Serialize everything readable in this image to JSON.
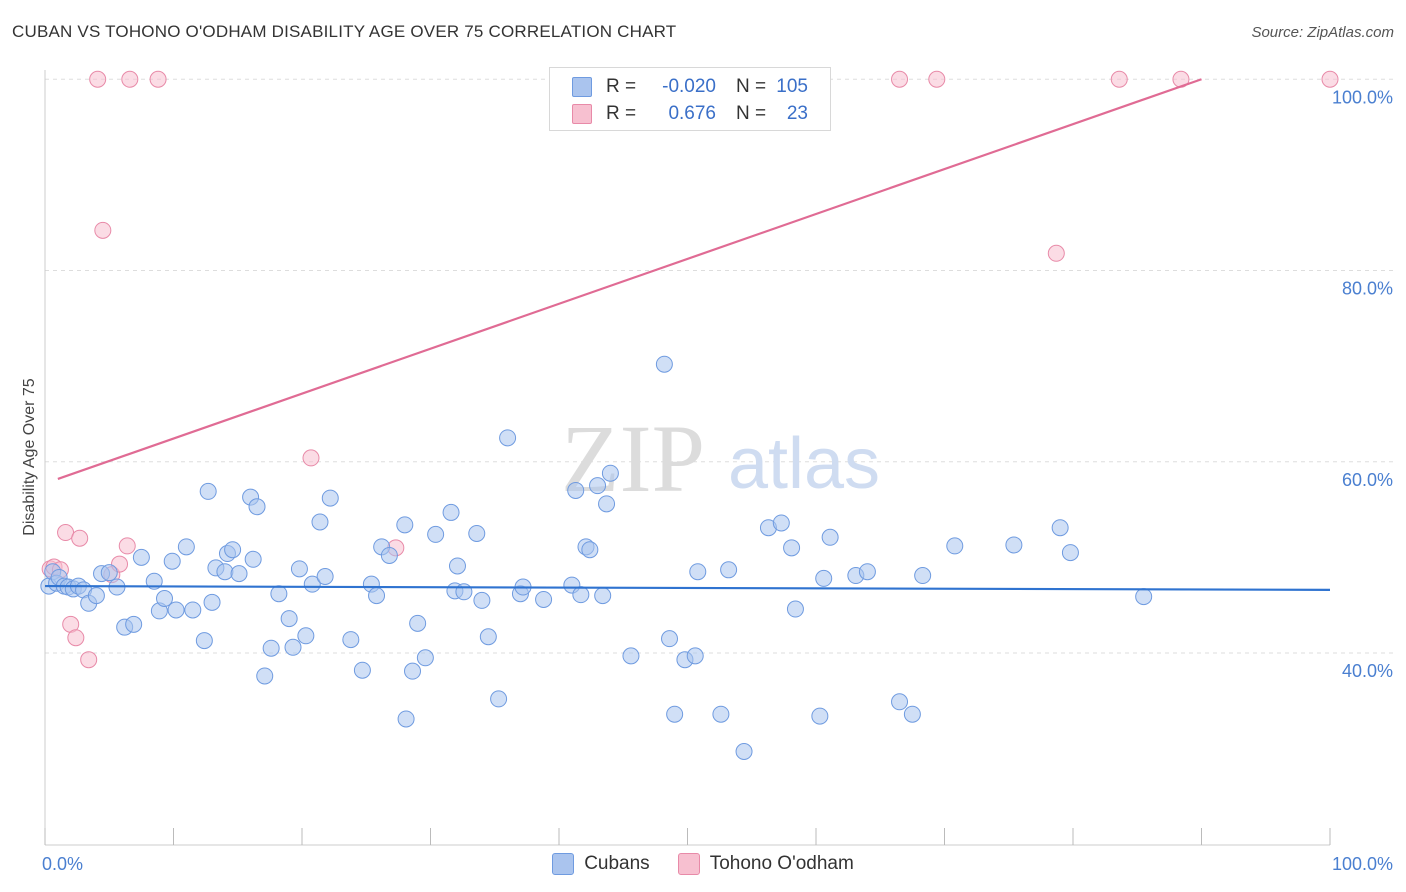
{
  "header": {
    "title": "CUBAN VS TOHONO O'ODHAM DISABILITY AGE OVER 75 CORRELATION CHART",
    "source": "Source: ZipAtlas.com"
  },
  "watermark": {
    "zip": "ZIP",
    "atlas": "atlas"
  },
  "legend": {
    "rows": [
      {
        "r_label": "R =",
        "r_value": "-0.020",
        "n_label": "N =",
        "n_value": "105"
      },
      {
        "r_label": "R =",
        "r_value": "0.676",
        "n_label": "N =",
        "n_value": "23"
      }
    ]
  },
  "bottom_legend": {
    "items": [
      "Cubans",
      "Tohono O'odham"
    ]
  },
  "colors": {
    "blue_fill": "#aac4ee",
    "blue_stroke": "#6f9be0",
    "blue_line": "#2f73d0",
    "pink_fill": "#f7c0d0",
    "pink_stroke": "#e88aa8",
    "pink_line": "#e06b94",
    "grid": "#dddddd"
  },
  "chart_data": {
    "type": "scatter",
    "ylabel": "Disability Age Over 75",
    "xlim": [
      0,
      100
    ],
    "ylim": [
      20,
      102
    ],
    "x_tick_labels": [
      "0.0%",
      "100.0%"
    ],
    "y_ticks": [
      {
        "value": 40,
        "label": "40.0%"
      },
      {
        "value": 60,
        "label": "60.0%"
      },
      {
        "value": 80,
        "label": "80.0%"
      },
      {
        "value": 100,
        "label": "100.0%"
      }
    ],
    "grid": true,
    "legend_position": "top-center",
    "series": [
      {
        "name": "Cubans",
        "trend": {
          "x": [
            0,
            100
          ],
          "y": [
            47.0,
            46.6
          ]
        },
        "points": [
          [
            0.3,
            47.0
          ],
          [
            0.6,
            48.5
          ],
          [
            0.9,
            47.3
          ],
          [
            1.1,
            47.9
          ],
          [
            1.5,
            47.0
          ],
          [
            1.8,
            46.9
          ],
          [
            2.2,
            46.7
          ],
          [
            2.6,
            47.0
          ],
          [
            3.0,
            46.6
          ],
          [
            3.4,
            45.2
          ],
          [
            4.0,
            46.0
          ],
          [
            4.4,
            48.3
          ],
          [
            5.0,
            48.4
          ],
          [
            5.6,
            46.9
          ],
          [
            6.2,
            42.7
          ],
          [
            6.9,
            43.0
          ],
          [
            7.5,
            50.0
          ],
          [
            8.5,
            47.5
          ],
          [
            8.9,
            44.4
          ],
          [
            9.3,
            45.7
          ],
          [
            9.9,
            49.6
          ],
          [
            10.2,
            44.5
          ],
          [
            11.0,
            51.1
          ],
          [
            11.5,
            44.5
          ],
          [
            12.4,
            41.3
          ],
          [
            12.7,
            56.9
          ],
          [
            13.0,
            45.3
          ],
          [
            13.3,
            48.9
          ],
          [
            14.0,
            48.5
          ],
          [
            14.2,
            50.4
          ],
          [
            14.6,
            50.8
          ],
          [
            15.1,
            48.3
          ],
          [
            16.0,
            56.3
          ],
          [
            16.2,
            49.8
          ],
          [
            16.5,
            55.3
          ],
          [
            17.1,
            37.6
          ],
          [
            17.6,
            40.5
          ],
          [
            18.2,
            46.2
          ],
          [
            19.0,
            43.6
          ],
          [
            19.3,
            40.6
          ],
          [
            19.8,
            48.8
          ],
          [
            20.3,
            41.8
          ],
          [
            20.8,
            47.2
          ],
          [
            21.4,
            53.7
          ],
          [
            21.8,
            48.0
          ],
          [
            22.2,
            56.2
          ],
          [
            23.8,
            41.4
          ],
          [
            24.7,
            38.2
          ],
          [
            25.4,
            47.2
          ],
          [
            25.8,
            46.0
          ],
          [
            26.2,
            51.1
          ],
          [
            26.8,
            50.2
          ],
          [
            28.0,
            53.4
          ],
          [
            28.1,
            33.1
          ],
          [
            28.6,
            38.1
          ],
          [
            29.0,
            43.1
          ],
          [
            29.6,
            39.5
          ],
          [
            30.4,
            52.4
          ],
          [
            31.6,
            54.7
          ],
          [
            31.9,
            46.5
          ],
          [
            32.1,
            49.1
          ],
          [
            32.6,
            46.4
          ],
          [
            33.6,
            52.5
          ],
          [
            34.0,
            45.5
          ],
          [
            34.5,
            41.7
          ],
          [
            35.3,
            35.2
          ],
          [
            36.0,
            62.5
          ],
          [
            37.0,
            46.2
          ],
          [
            37.2,
            46.9
          ],
          [
            38.8,
            45.6
          ],
          [
            41.0,
            47.1
          ],
          [
            41.3,
            57.0
          ],
          [
            41.7,
            46.1
          ],
          [
            42.1,
            51.1
          ],
          [
            42.4,
            50.8
          ],
          [
            43.0,
            57.5
          ],
          [
            43.4,
            46.0
          ],
          [
            43.7,
            55.6
          ],
          [
            44.0,
            58.8
          ],
          [
            45.6,
            39.7
          ],
          [
            48.2,
            70.2
          ],
          [
            48.6,
            41.5
          ],
          [
            49.0,
            33.6
          ],
          [
            49.8,
            39.3
          ],
          [
            50.6,
            39.7
          ],
          [
            50.8,
            48.5
          ],
          [
            52.6,
            33.6
          ],
          [
            53.2,
            48.7
          ],
          [
            54.4,
            29.7
          ],
          [
            56.3,
            53.1
          ],
          [
            57.3,
            53.6
          ],
          [
            58.1,
            51.0
          ],
          [
            58.4,
            44.6
          ],
          [
            60.3,
            33.4
          ],
          [
            60.6,
            47.8
          ],
          [
            61.1,
            52.1
          ],
          [
            63.1,
            48.1
          ],
          [
            64.0,
            48.5
          ],
          [
            66.5,
            34.9
          ],
          [
            67.5,
            33.6
          ],
          [
            68.3,
            48.1
          ],
          [
            70.8,
            51.2
          ],
          [
            75.4,
            51.3
          ],
          [
            79.0,
            53.1
          ],
          [
            79.8,
            50.5
          ],
          [
            85.5,
            45.9
          ]
        ]
      },
      {
        "name": "Tohono O'odham",
        "trend": {
          "x": [
            1.0,
            90.0
          ],
          "y": [
            58.2,
            100.0
          ]
        },
        "points": [
          [
            0.4,
            48.8
          ],
          [
            0.7,
            49.0
          ],
          [
            1.2,
            48.7
          ],
          [
            1.6,
            52.6
          ],
          [
            2.0,
            43.0
          ],
          [
            2.4,
            41.6
          ],
          [
            2.7,
            52.0
          ],
          [
            3.4,
            39.3
          ],
          [
            4.1,
            100.0
          ],
          [
            4.5,
            84.2
          ],
          [
            5.2,
            48.2
          ],
          [
            5.8,
            49.3
          ],
          [
            6.4,
            51.2
          ],
          [
            6.6,
            100.0
          ],
          [
            8.8,
            100.0
          ],
          [
            20.7,
            60.4
          ],
          [
            27.3,
            51.0
          ],
          [
            66.5,
            100.0
          ],
          [
            69.4,
            100.0
          ],
          [
            78.7,
            81.8
          ],
          [
            83.6,
            100.0
          ],
          [
            88.4,
            100.0
          ],
          [
            100.0,
            100.0
          ]
        ]
      }
    ]
  }
}
